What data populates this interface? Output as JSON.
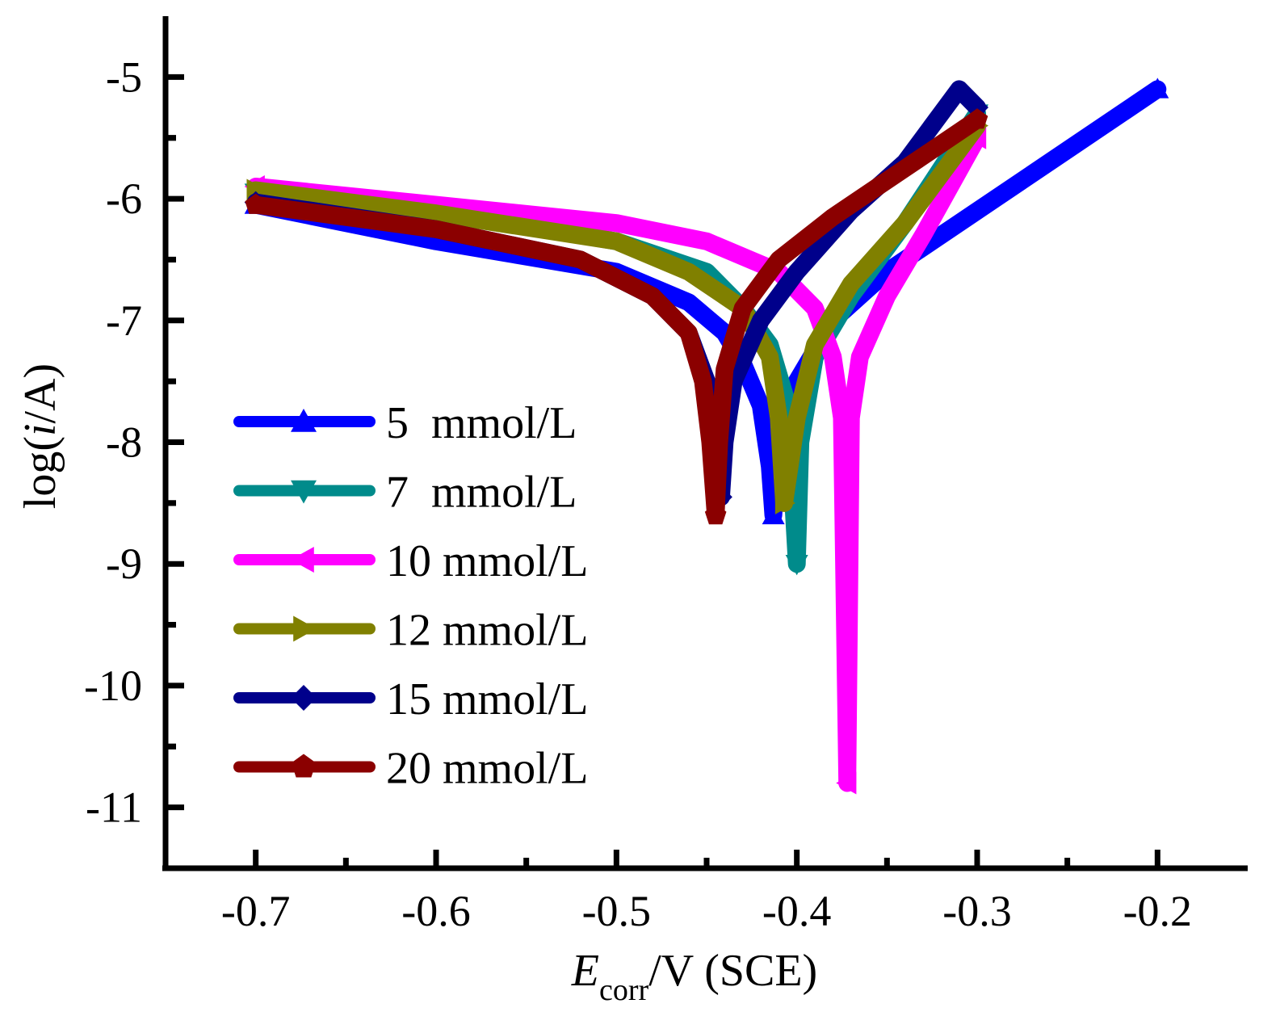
{
  "chart_data": {
    "type": "line",
    "title": "",
    "xlabel": {
      "main": "E",
      "sub": "corr",
      "rest": "/V (SCE)"
    },
    "ylabel": {
      "pre": "log(",
      "italic": "i",
      "post": "/A)"
    },
    "xlim": [
      -0.75,
      -0.15
    ],
    "ylim": [
      -11.5,
      -4.5
    ],
    "xticks": [
      -0.7,
      -0.6,
      -0.5,
      -0.4,
      -0.3,
      -0.2
    ],
    "xtick_labels": [
      "-0.7",
      "-0.6",
      "-0.5",
      "-0.4",
      "-0.3",
      "-0.2"
    ],
    "yticks": [
      -5,
      -6,
      -7,
      -8,
      -9,
      -10,
      -11
    ],
    "ytick_labels": [
      "-5",
      "-6",
      "-7",
      "-8",
      "-9",
      "-10",
      "-11"
    ],
    "legend_position": "center-left",
    "series": [
      {
        "name": "5  mmol/L",
        "color": "#0000ff",
        "marker": "triangle-up",
        "ecorr": -0.413,
        "imin": -8.6,
        "x": [
          -0.7,
          -0.6,
          -0.5,
          -0.46,
          -0.44,
          -0.43,
          -0.42,
          -0.415,
          -0.413,
          -0.41,
          -0.4,
          -0.38,
          -0.35,
          -0.3,
          -0.25,
          -0.2
        ],
        "y": [
          -6.05,
          -6.35,
          -6.6,
          -6.85,
          -7.1,
          -7.35,
          -7.7,
          -8.2,
          -8.6,
          -8.0,
          -7.5,
          -7.0,
          -6.6,
          -6.1,
          -5.6,
          -5.1
        ]
      },
      {
        "name": "7  mmol/L",
        "color": "#008b8b",
        "marker": "triangle-down",
        "ecorr": -0.4,
        "imin": -9.0,
        "x": [
          -0.7,
          -0.6,
          -0.5,
          -0.45,
          -0.43,
          -0.415,
          -0.405,
          -0.4,
          -0.398,
          -0.39,
          -0.37,
          -0.34,
          -0.3
        ],
        "y": [
          -5.95,
          -6.1,
          -6.35,
          -6.6,
          -6.9,
          -7.2,
          -7.7,
          -9.0,
          -8.0,
          -7.3,
          -6.8,
          -6.2,
          -5.3
        ]
      },
      {
        "name": "10 mmol/L",
        "color": "#ff00ff",
        "marker": "triangle-left",
        "ecorr": -0.372,
        "imin": -10.8,
        "x": [
          -0.7,
          -0.6,
          -0.5,
          -0.45,
          -0.41,
          -0.39,
          -0.38,
          -0.375,
          -0.372,
          -0.37,
          -0.365,
          -0.35,
          -0.33,
          -0.3
        ],
        "y": [
          -5.9,
          -6.05,
          -6.2,
          -6.35,
          -6.6,
          -6.9,
          -7.3,
          -7.8,
          -10.8,
          -7.8,
          -7.3,
          -6.8,
          -6.3,
          -5.5
        ]
      },
      {
        "name": "12 mmol/L",
        "color": "#808000",
        "marker": "triangle-right",
        "ecorr": -0.407,
        "imin": -8.5,
        "x": [
          -0.7,
          -0.6,
          -0.5,
          -0.46,
          -0.43,
          -0.415,
          -0.41,
          -0.407,
          -0.4,
          -0.39,
          -0.37,
          -0.34,
          -0.3
        ],
        "y": [
          -5.93,
          -6.12,
          -6.35,
          -6.6,
          -6.9,
          -7.3,
          -7.8,
          -8.5,
          -7.8,
          -7.2,
          -6.7,
          -6.2,
          -5.4
        ]
      },
      {
        "name": "15 mmol/L",
        "color": "#00008b",
        "marker": "diamond",
        "ecorr": -0.442,
        "imin": -8.45,
        "x": [
          -0.7,
          -0.6,
          -0.52,
          -0.48,
          -0.46,
          -0.45,
          -0.445,
          -0.442,
          -0.44,
          -0.435,
          -0.42,
          -0.4,
          -0.37,
          -0.34,
          -0.31,
          -0.3
        ],
        "y": [
          -6.03,
          -6.25,
          -6.5,
          -6.8,
          -7.1,
          -7.5,
          -8.0,
          -8.45,
          -8.0,
          -7.5,
          -7.0,
          -6.6,
          -6.1,
          -5.7,
          -5.1,
          -5.25
        ]
      },
      {
        "name": "20 mmol/L",
        "color": "#8b0000",
        "marker": "pentagon",
        "ecorr": -0.445,
        "imin": -8.6,
        "x": [
          -0.7,
          -0.6,
          -0.52,
          -0.48,
          -0.46,
          -0.452,
          -0.448,
          -0.445,
          -0.443,
          -0.44,
          -0.43,
          -0.41,
          -0.38,
          -0.34,
          -0.3
        ],
        "y": [
          -6.05,
          -6.25,
          -6.5,
          -6.8,
          -7.1,
          -7.5,
          -8.0,
          -8.6,
          -8.0,
          -7.4,
          -6.9,
          -6.5,
          -6.15,
          -5.75,
          -5.35
        ]
      }
    ]
  }
}
